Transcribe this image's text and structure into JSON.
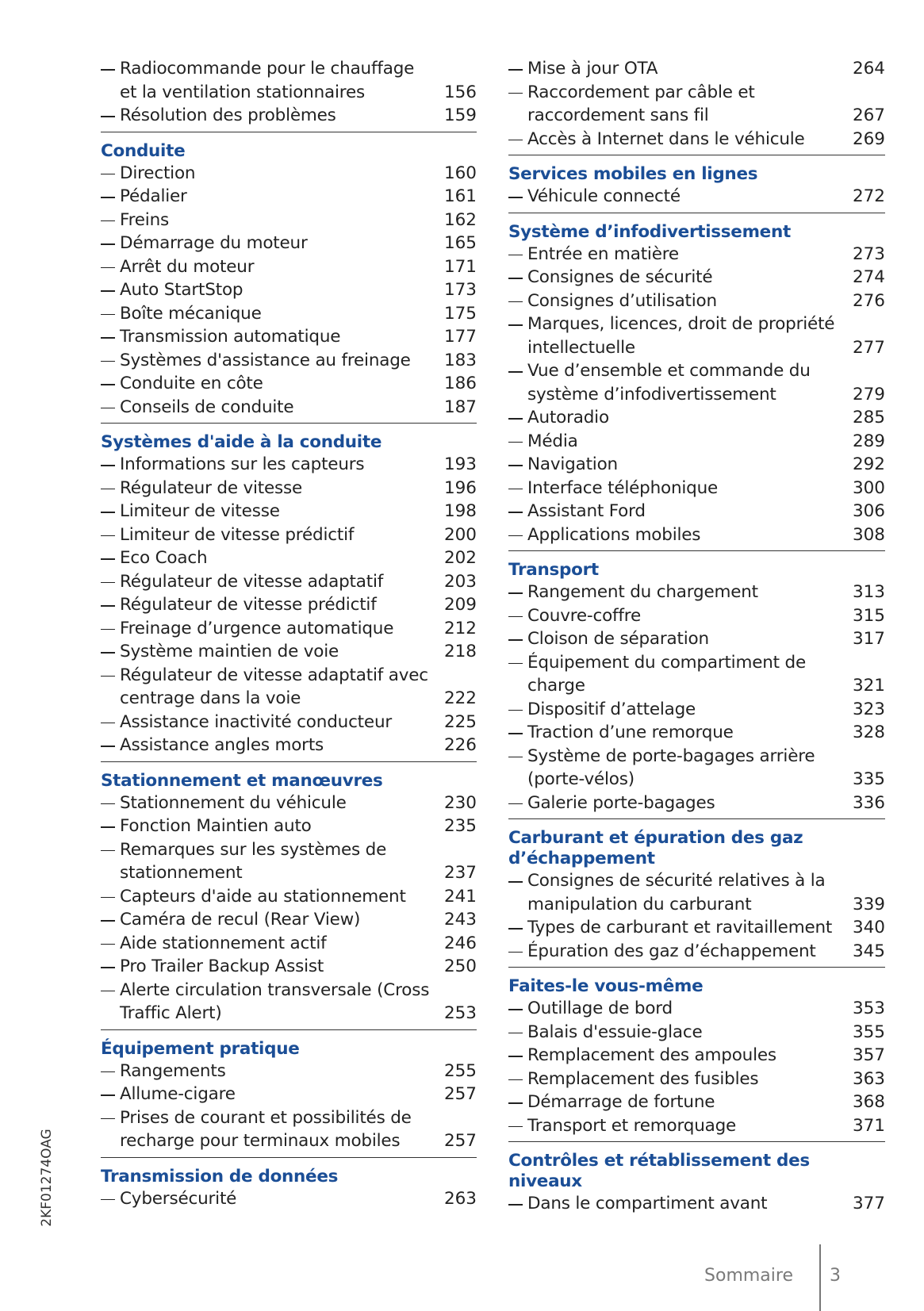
{
  "columns": [
    {
      "sections": [
        {
          "entries": [
            {
              "text": [
                "Radiocommande pour le chauffage",
                "et la ventilation stationnaires"
              ],
              "page": "156"
            },
            {
              "text": [
                "Résolution des problèmes"
              ],
              "page": "159"
            }
          ]
        },
        {
          "title": [
            "Conduite"
          ],
          "entries": [
            {
              "text": [
                "Direction"
              ],
              "page": "160"
            },
            {
              "text": [
                "Pédalier"
              ],
              "page": "161"
            },
            {
              "text": [
                "Freins"
              ],
              "page": "162"
            },
            {
              "text": [
                "Démarrage du moteur"
              ],
              "page": "165"
            },
            {
              "text": [
                "Arrêt du moteur"
              ],
              "page": "171"
            },
            {
              "text": [
                "Auto StartStop"
              ],
              "page": "173"
            },
            {
              "text": [
                "Boîte mécanique"
              ],
              "page": "175"
            },
            {
              "text": [
                "Transmission automatique"
              ],
              "page": "177"
            },
            {
              "text": [
                "Systèmes d'assistance au freinage"
              ],
              "page": "183"
            },
            {
              "text": [
                "Conduite en côte"
              ],
              "page": "186"
            },
            {
              "text": [
                "Conseils de conduite"
              ],
              "page": "187"
            }
          ]
        },
        {
          "title": [
            "Systèmes d'aide à la conduite"
          ],
          "entries": [
            {
              "text": [
                "Informations sur les capteurs"
              ],
              "page": "193"
            },
            {
              "text": [
                "Régulateur de vitesse"
              ],
              "page": "196"
            },
            {
              "text": [
                "Limiteur de vitesse"
              ],
              "page": "198"
            },
            {
              "text": [
                "Limiteur de vitesse prédictif"
              ],
              "page": "200"
            },
            {
              "text": [
                "Eco Coach"
              ],
              "page": "202"
            },
            {
              "text": [
                "Régulateur de vitesse adaptatif"
              ],
              "page": "203"
            },
            {
              "text": [
                "Régulateur de vitesse prédictif"
              ],
              "page": "209"
            },
            {
              "text": [
                "Freinage d’urgence automatique"
              ],
              "page": "212"
            },
            {
              "text": [
                "Système maintien de voie"
              ],
              "page": "218"
            },
            {
              "text": [
                "Régulateur de vitesse adaptatif avec",
                "centrage dans la voie"
              ],
              "page": "222"
            },
            {
              "text": [
                "Assistance inactivité conducteur"
              ],
              "page": "225"
            },
            {
              "text": [
                "Assistance angles morts"
              ],
              "page": "226"
            }
          ]
        },
        {
          "title": [
            "Stationnement et manœuvres"
          ],
          "entries": [
            {
              "text": [
                "Stationnement du véhicule"
              ],
              "page": "230"
            },
            {
              "text": [
                "Fonction Maintien auto"
              ],
              "page": "235"
            },
            {
              "text": [
                "Remarques sur les systèmes de",
                "stationnement"
              ],
              "page": "237"
            },
            {
              "text": [
                "Capteurs d'aide au stationnement"
              ],
              "page": "241"
            },
            {
              "text": [
                "Caméra de recul (Rear View)"
              ],
              "page": "243"
            },
            {
              "text": [
                "Aide stationnement actif"
              ],
              "page": "246"
            },
            {
              "text": [
                "Pro Trailer Backup Assist"
              ],
              "page": "250"
            },
            {
              "text": [
                "Alerte circulation transversale (Cross",
                "Traffic Alert)"
              ],
              "page": "253"
            }
          ]
        },
        {
          "title": [
            "Équipement pratique"
          ],
          "entries": [
            {
              "text": [
                "Rangements"
              ],
              "page": "255"
            },
            {
              "text": [
                "Allume-cigare"
              ],
              "page": "257"
            },
            {
              "text": [
                "Prises de courant et possibilités de",
                "recharge pour terminaux mobiles"
              ],
              "page": "257"
            }
          ]
        },
        {
          "title": [
            "Transmission de données"
          ],
          "entries": [
            {
              "text": [
                "Cybersécurité"
              ],
              "page": "263"
            }
          ]
        }
      ]
    },
    {
      "sections": [
        {
          "entries": [
            {
              "text": [
                "Mise à jour OTA"
              ],
              "page": "264"
            },
            {
              "text": [
                "Raccordement par câble et",
                "raccordement sans fil"
              ],
              "page": "267"
            },
            {
              "text": [
                "Accès à Internet dans le véhicule"
              ],
              "page": "269"
            }
          ]
        },
        {
          "title": [
            "Services mobiles en lignes"
          ],
          "entries": [
            {
              "text": [
                "Véhicule connecté"
              ],
              "page": "272"
            }
          ]
        },
        {
          "title": [
            "Système d’infodivertissement"
          ],
          "entries": [
            {
              "text": [
                "Entrée en matière"
              ],
              "page": "273"
            },
            {
              "text": [
                "Consignes de sécurité"
              ],
              "page": "274"
            },
            {
              "text": [
                "Consignes d’utilisation"
              ],
              "page": "276"
            },
            {
              "text": [
                "Marques, licences, droit de propriété",
                "intellectuelle"
              ],
              "page": "277"
            },
            {
              "text": [
                "Vue d’ensemble et commande du",
                "système d’infodivertissement"
              ],
              "page": "279"
            },
            {
              "text": [
                "Autoradio"
              ],
              "page": "285"
            },
            {
              "text": [
                "Média"
              ],
              "page": "289"
            },
            {
              "text": [
                "Navigation"
              ],
              "page": "292"
            },
            {
              "text": [
                "Interface téléphonique"
              ],
              "page": "300"
            },
            {
              "text": [
                "Assistant Ford"
              ],
              "page": "306"
            },
            {
              "text": [
                "Applications mobiles"
              ],
              "page": "308"
            }
          ]
        },
        {
          "title": [
            "Transport"
          ],
          "entries": [
            {
              "text": [
                "Rangement du chargement"
              ],
              "page": "313"
            },
            {
              "text": [
                "Couvre-coffre"
              ],
              "page": "315"
            },
            {
              "text": [
                "Cloison de séparation"
              ],
              "page": "317"
            },
            {
              "text": [
                "Équipement du compartiment de",
                "charge"
              ],
              "page": "321"
            },
            {
              "text": [
                "Dispositif d’attelage"
              ],
              "page": "323"
            },
            {
              "text": [
                "Traction d’une remorque"
              ],
              "page": "328"
            },
            {
              "text": [
                "Système de porte-bagages arrière",
                "(porte-vélos)"
              ],
              "page": "335"
            },
            {
              "text": [
                "Galerie porte-bagages"
              ],
              "page": "336"
            }
          ]
        },
        {
          "title": [
            "Carburant et épuration des gaz",
            "d’échappement"
          ],
          "entries": [
            {
              "text": [
                "Consignes de sécurité relatives à la",
                "manipulation du carburant"
              ],
              "page": "339"
            },
            {
              "text": [
                "Types de carburant et ravitaillement"
              ],
              "page": "340"
            },
            {
              "text": [
                "Épuration des gaz d’échappement"
              ],
              "page": "345"
            }
          ]
        },
        {
          "title": [
            "Faites-le vous-même"
          ],
          "entries": [
            {
              "text": [
                "Outillage de bord"
              ],
              "page": "353"
            },
            {
              "text": [
                "Balais d'essuie-glace"
              ],
              "page": "355"
            },
            {
              "text": [
                "Remplacement des ampoules"
              ],
              "page": "357"
            },
            {
              "text": [
                "Remplacement des fusibles"
              ],
              "page": "363"
            },
            {
              "text": [
                "Démarrage de fortune"
              ],
              "page": "368"
            },
            {
              "text": [
                "Transport et remorquage"
              ],
              "page": "371"
            }
          ]
        },
        {
          "title": [
            "Contrôles et rétablissement des",
            "niveaux"
          ],
          "entries": [
            {
              "text": [
                "Dans le compartiment avant"
              ],
              "page": "377"
            }
          ]
        }
      ]
    }
  ],
  "side_code": "2KF01274OAG",
  "footer": {
    "label": "Sommaire",
    "page_number": "3"
  }
}
